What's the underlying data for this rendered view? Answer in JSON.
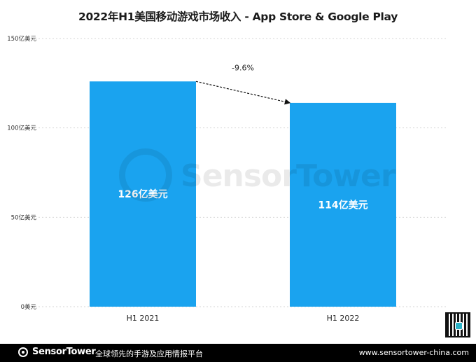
{
  "chart_data": {
    "type": "bar",
    "title": "2022年H1美国移动游戏市场收入 - App Store & Google Play",
    "categories": [
      "H1 2021",
      "H1 2022"
    ],
    "values": [
      126,
      114
    ],
    "bar_labels": [
      "126亿美元",
      "114亿美元"
    ],
    "ylim": [
      0,
      150
    ],
    "yticks": [
      0,
      50,
      100,
      150
    ],
    "ytick_labels": [
      "0美元",
      "50亿美元",
      "100亿美元",
      "150亿美元"
    ],
    "xlabel": "",
    "ylabel": "",
    "grid": true,
    "change_annotation": "-9.6%",
    "bar_color": "#1aa3ef"
  },
  "watermark": "SensorTower",
  "footer": {
    "brand": "SensorTower",
    "slogan": "全球领先的手游及应用情报平台",
    "url": "www.sensortower-china.com",
    "background": "#000000"
  }
}
